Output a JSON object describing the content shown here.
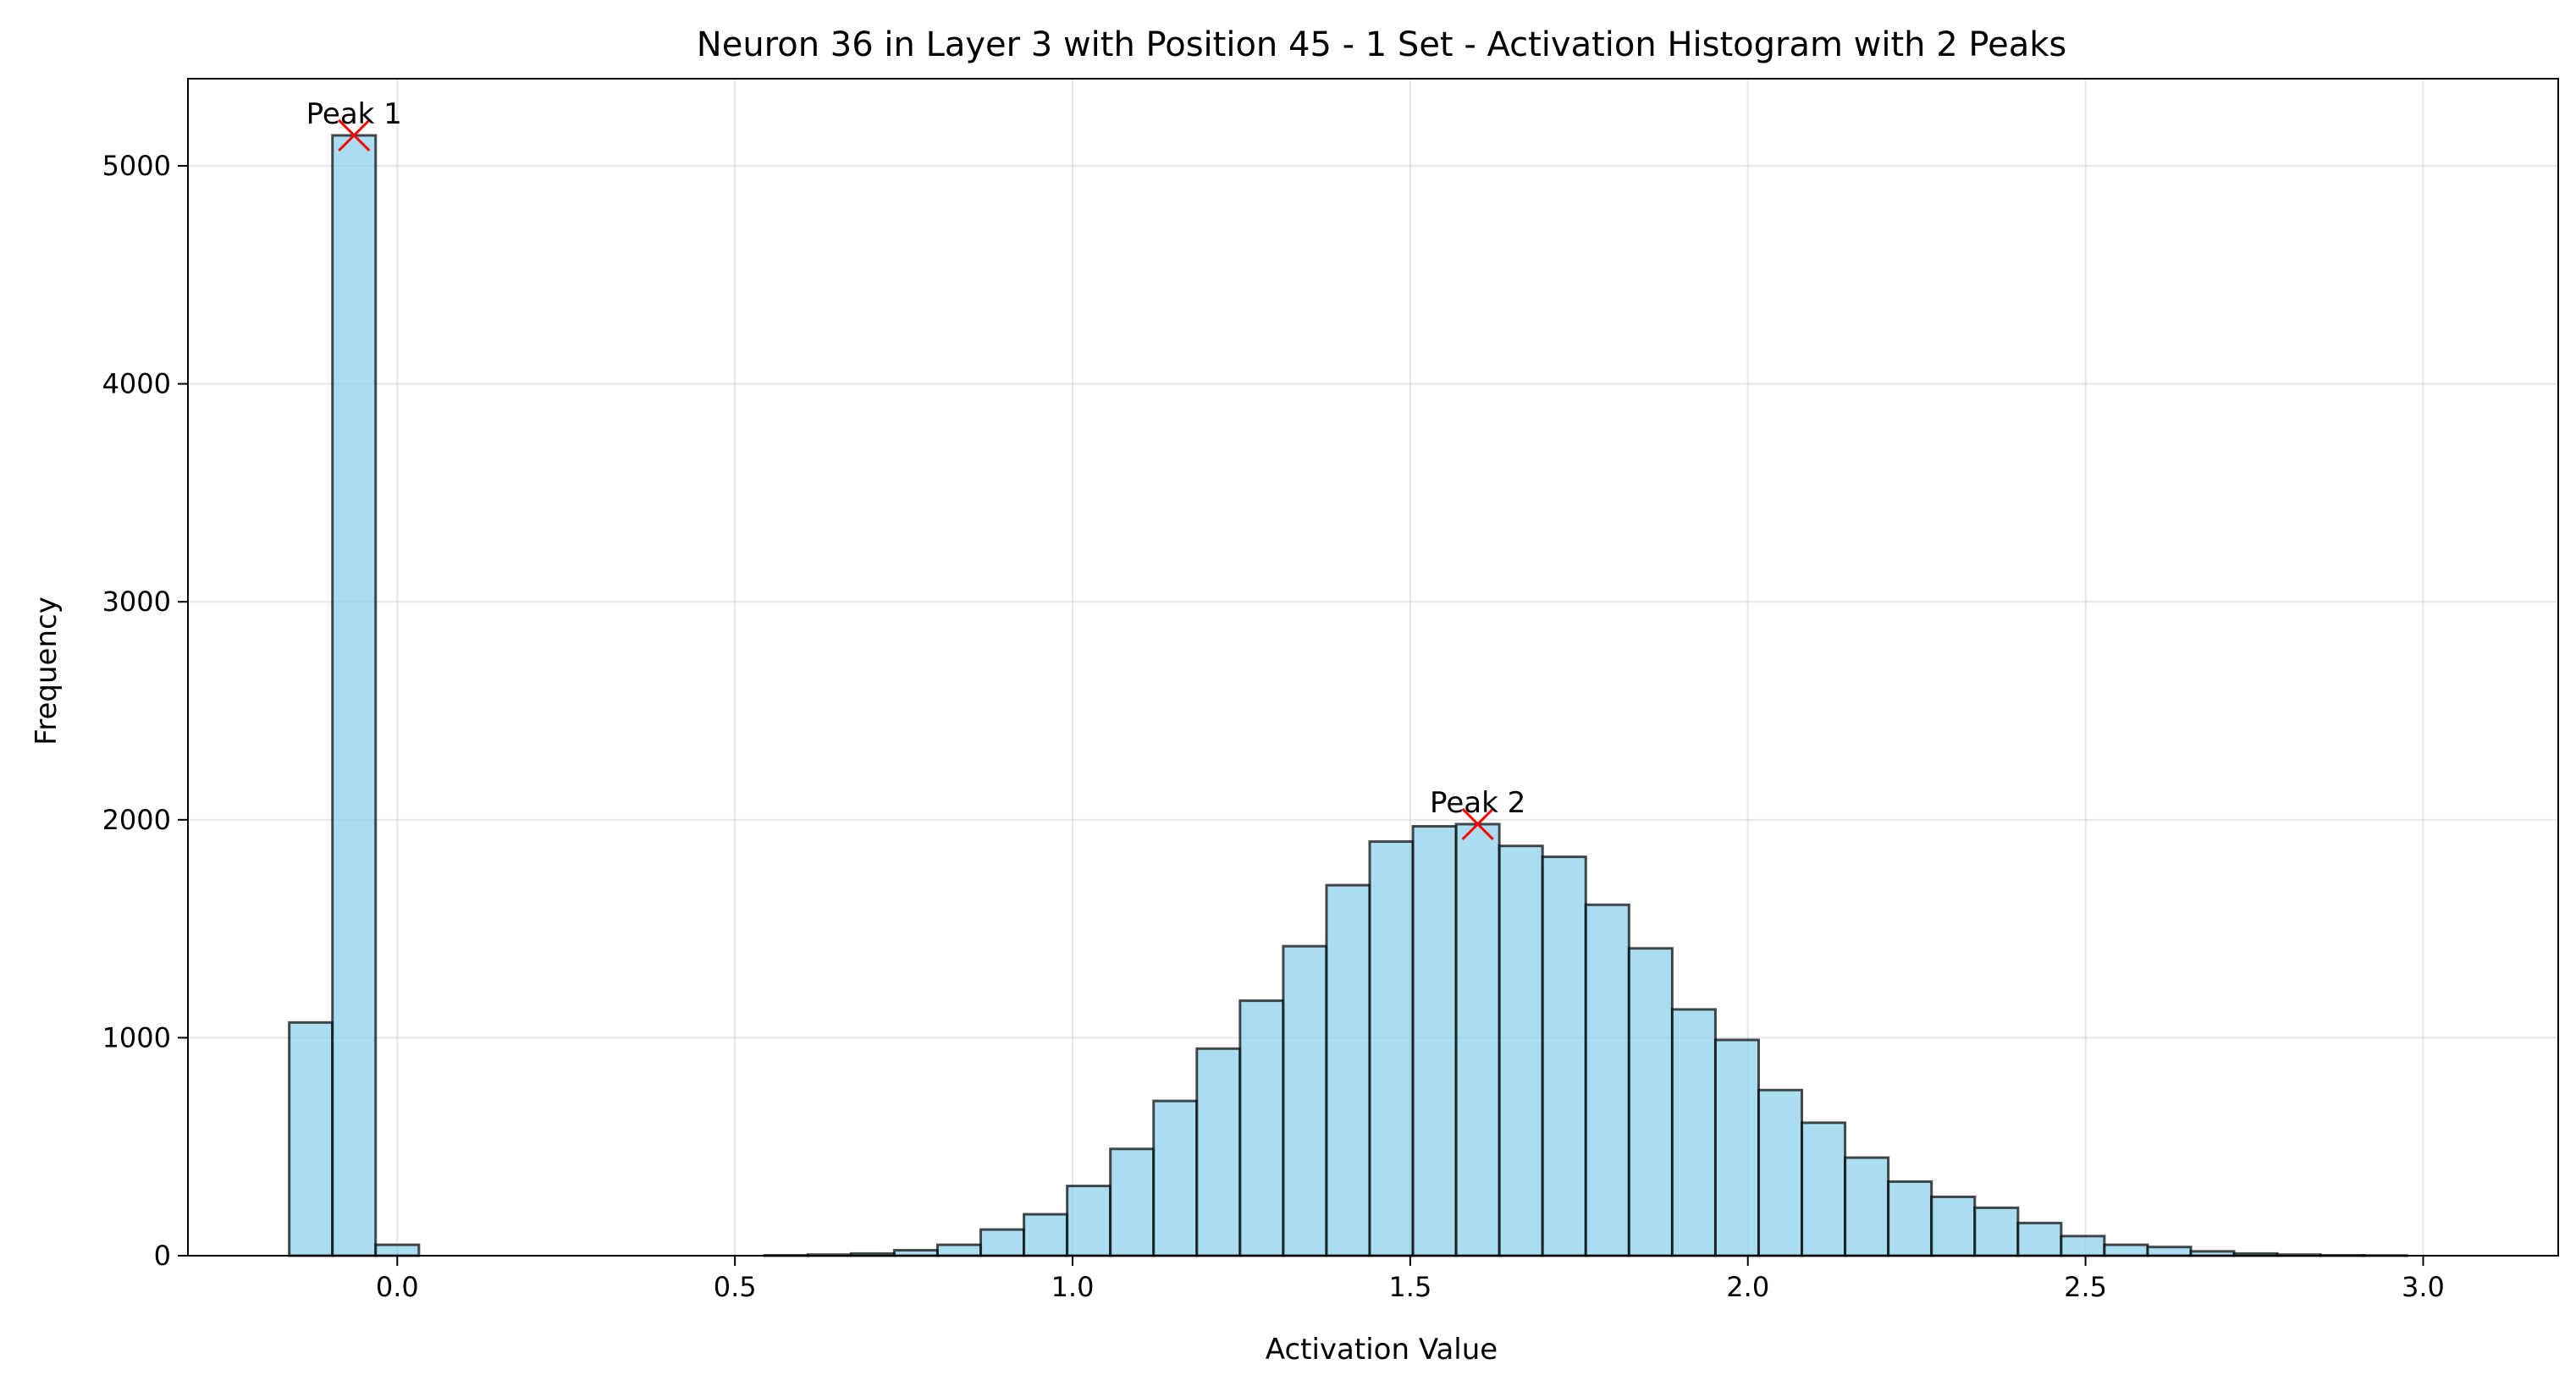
{
  "chart_data": {
    "type": "bar",
    "title": "Neuron 36 in Layer 3 with Position 45 - 1 Set - Activation Histogram with 2 Peaks",
    "xlabel": "Activation Value",
    "ylabel": "Frequency",
    "xlim": [
      -0.31,
      3.2
    ],
    "ylim": [
      0,
      5400
    ],
    "xticks": [
      0.0,
      0.5,
      1.0,
      1.5,
      2.0,
      2.5,
      3.0
    ],
    "xtick_labels": [
      "0.0",
      "0.5",
      "1.0",
      "1.5",
      "2.0",
      "2.5",
      "3.0"
    ],
    "yticks": [
      0,
      1000,
      2000,
      3000,
      4000,
      5000
    ],
    "ytick_labels": [
      "0",
      "1000",
      "2000",
      "3000",
      "4000",
      "5000"
    ],
    "grid": true,
    "bar_color": "#87ceeb",
    "edge_color": "#000000",
    "peak_color": "#ff0000",
    "bin_start": -0.16,
    "bin_width": 0.064,
    "counts": [
      1070,
      5140,
      50,
      0,
      0,
      0,
      0,
      0,
      0,
      0,
      0,
      2,
      5,
      10,
      25,
      50,
      120,
      190,
      320,
      490,
      710,
      950,
      1170,
      1420,
      1700,
      1900,
      1970,
      1980,
      1880,
      1830,
      1610,
      1410,
      1130,
      990,
      760,
      610,
      450,
      340,
      270,
      220,
      150,
      90,
      50,
      40,
      20,
      10,
      5,
      2,
      1,
      0
    ],
    "peaks": [
      {
        "label": "Peak 1",
        "x": -0.064,
        "y": 5140
      },
      {
        "label": "Peak 2",
        "x": 1.6,
        "y": 1980
      }
    ]
  }
}
